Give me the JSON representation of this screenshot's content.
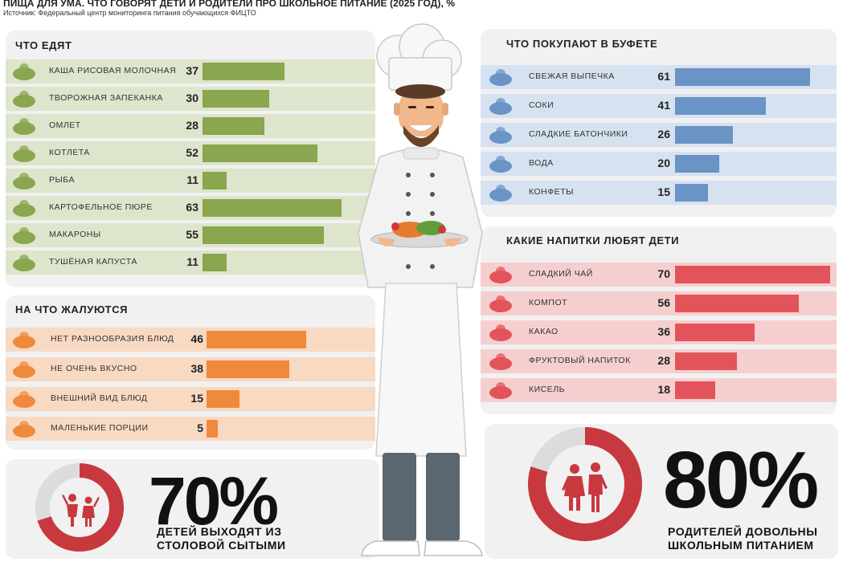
{
  "header": {
    "title": "ПИЩА ДЛЯ УМА. ЧТО ГОВОРЯТ ДЕТИ И РОДИТЕЛИ ПРО ШКОЛЬНОЕ ПИТАНИЕ (2025 ГОД), %",
    "source": "Источник: Федеральный центр мониторинга питания обучающихся ФИЦТО"
  },
  "colors": {
    "green": "#8aa64f",
    "green_stripe": "#dde5cc",
    "orange": "#ef8a3c",
    "orange_stripe": "#f8d9c2",
    "blue": "#6a93c6",
    "blue_stripe": "#d6e2f0",
    "red": "#e2545a",
    "red_stripe": "#f5cfcf",
    "donut": "#c8383f",
    "donut_track": "#dcdcdc"
  },
  "chart_data": [
    {
      "type": "bar",
      "title": "ЧТО ЕДЯТ",
      "categories": [
        "КАША РИСОВАЯ МОЛОЧНАЯ",
        "ТВОРОЖНАЯ ЗАПЕКАНКА",
        "ОМЛЕТ",
        "КОТЛЕТА",
        "РЫБА",
        "КАРТОФЕЛЬНОЕ ПЮРЕ",
        "МАКАРОНЫ",
        "ТУШЁНАЯ КАПУСТА"
      ],
      "values": [
        37,
        30,
        28,
        52,
        11,
        63,
        55,
        11
      ],
      "icons": [
        "porridge-bowl-icon",
        "casserole-icon",
        "omelet-icon",
        "cutlet-icon",
        "fish-icon",
        "mashed-potato-icon",
        "pasta-icon",
        "cabbage-icon"
      ]
    },
    {
      "type": "bar",
      "title": "НА ЧТО ЖАЛУЮТСЯ",
      "categories": [
        "НЕТ РАЗНООБРАЗИЯ БЛЮД",
        "НЕ ОЧЕНЬ ВКУСНО",
        "ВНЕШНИЙ ВИД БЛЮД",
        "МАЛЕНЬКИЕ ПОРЦИИ"
      ],
      "values": [
        46,
        38,
        15,
        5
      ],
      "icons": [
        "variety-icon",
        "not-tasty-icon",
        "cloche-icon",
        "plate-icon"
      ]
    },
    {
      "type": "bar",
      "title": "ЧТО ПОКУПАЮТ В БУФЕТЕ",
      "categories": [
        "СВЕЖАЯ ВЫПЕЧКА",
        "СОКИ",
        "СЛАДКИЕ БАТОНЧИКИ",
        "ВОДА",
        "КОНФЕТЫ"
      ],
      "values": [
        61,
        41,
        26,
        20,
        15
      ],
      "icons": [
        "cupcake-icon",
        "juice-icon",
        "candy-bar-icon",
        "water-bottle-icon",
        "candies-icon"
      ]
    },
    {
      "type": "bar",
      "title": "КАКИЕ НАПИТКИ ЛЮБЯТ ДЕТИ",
      "categories": [
        "СЛАДКИЙ ЧАЙ",
        "КОМПОТ",
        "КАКАО",
        "ФРУКТОВЫЙ НАПИТОК",
        "КИСЕЛЬ"
      ],
      "values": [
        70,
        56,
        36,
        28,
        18
      ],
      "icons": [
        "tea-cup-icon",
        "compote-jar-icon",
        "cocoa-mug-icon",
        "fruit-drink-icon",
        "kissel-glass-icon"
      ]
    }
  ],
  "stats": {
    "kids": {
      "percent": "70%",
      "value": 70,
      "caption_line1": "ДЕТЕЙ ВЫХОДЯТ ИЗ",
      "caption_line2": "СТОЛОВОЙ СЫТЫМИ"
    },
    "parents": {
      "percent": "80%",
      "value": 80,
      "caption_line1": "РОДИТЕЛЕЙ ДОВОЛЬНЫ",
      "caption_line2": "ШКОЛЬНЫМ ПИТАНИЕМ"
    }
  }
}
